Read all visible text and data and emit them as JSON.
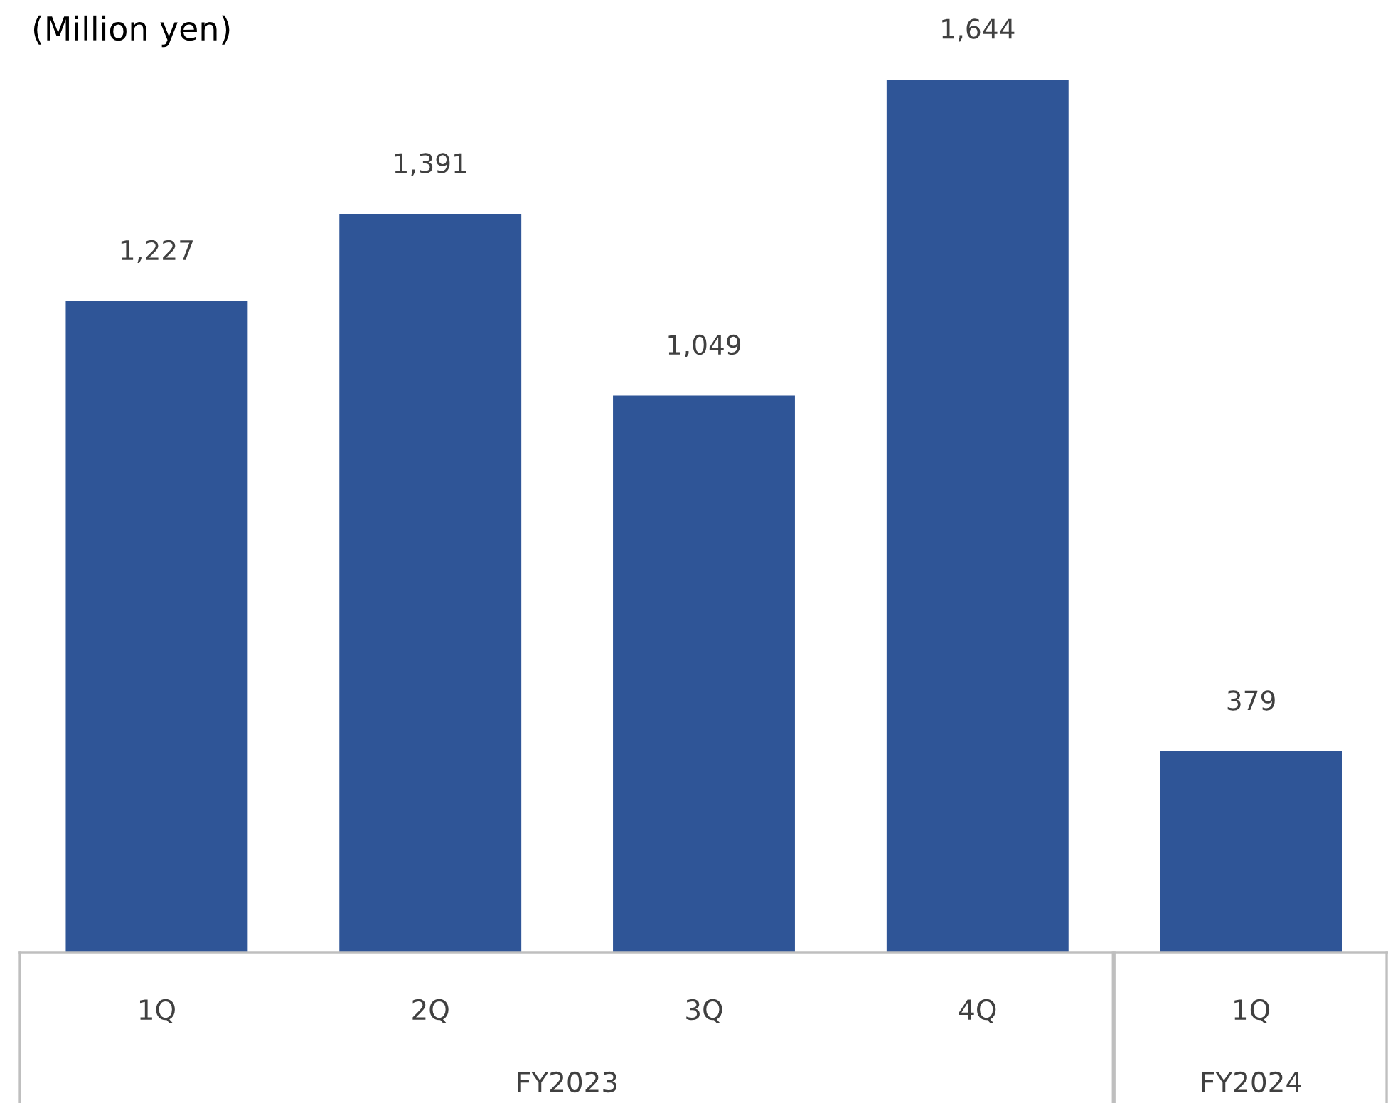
{
  "chart_data": {
    "type": "bar",
    "title": "(Million yen)",
    "categories": [
      "1Q",
      "2Q",
      "3Q",
      "4Q",
      "1Q"
    ],
    "values": [
      1227,
      1391,
      1049,
      1644,
      379
    ],
    "value_labels": [
      "1,227",
      "1,391",
      "1,049",
      "1,644",
      "379"
    ],
    "color": "#2f5597",
    "annotations": [
      "FY2023",
      "FY2024"
    ]
  }
}
